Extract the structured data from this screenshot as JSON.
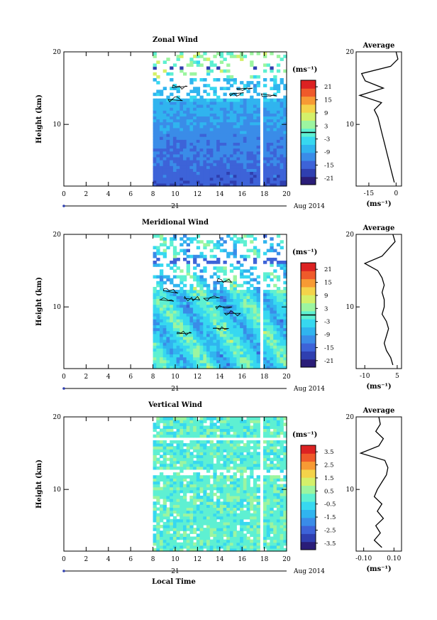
{
  "colors": {
    "colormap": [
      "#2a1d78",
      "#2f3fb0",
      "#3d63d8",
      "#3a8ce8",
      "#30b4ef",
      "#37d8f0",
      "#5ef0d2",
      "#9cf5a0",
      "#d4f06a",
      "#f4d34a",
      "#f79a34",
      "#ef5a2a",
      "#dc2222"
    ],
    "axis": "#000000",
    "contour": "#000000",
    "gap": "#ffffff"
  },
  "figure": {
    "date_label": "Aug 2014",
    "day_label": "21",
    "xlabel": "Local Time",
    "xticks": [
      "0",
      "2",
      "4",
      "6",
      "8",
      "10",
      "12",
      "14",
      "16",
      "18",
      "20"
    ],
    "yticks": [
      "10",
      "20"
    ]
  },
  "chart_data": [
    {
      "type": "heatmap",
      "title": "Zonal Wind",
      "ylabel": "Height (km)",
      "xlim": [
        0,
        20
      ],
      "ylim": [
        1.5,
        20
      ],
      "data_start_hour": 8,
      "gap_hour": 17.7,
      "colorbar": {
        "unit": "(ms⁻¹)",
        "range": [
          -24,
          24
        ],
        "ticks": [
          "21",
          "15",
          "9",
          "3",
          "-3",
          "-9",
          "-15",
          "-21"
        ],
        "zero_line": true
      },
      "profile": {
        "type": "line",
        "title": "Average",
        "xlabel": "(ms⁻¹)",
        "xlim": [
          -22,
          3
        ],
        "xticks": [
          "-15",
          "0"
        ],
        "ylim": [
          1.5,
          20
        ],
        "y": [
          2,
          3,
          4,
          5,
          6,
          7,
          8,
          9,
          10,
          11,
          12,
          13,
          14,
          15,
          16,
          17,
          18,
          19,
          20
        ],
        "x": [
          -1,
          -2,
          -3,
          -4,
          -5,
          -6,
          -7,
          -8,
          -9,
          -10,
          -12,
          -8,
          -20,
          -7,
          -17,
          -19,
          -3,
          1,
          0
        ]
      }
    },
    {
      "type": "heatmap",
      "title": "Meridional Wind",
      "ylabel": "Height (km)",
      "xlim": [
        0,
        20
      ],
      "ylim": [
        1.5,
        20
      ],
      "data_start_hour": 8,
      "gap_hour": 17.7,
      "colorbar": {
        "unit": "(ms⁻¹)",
        "range": [
          -24,
          24
        ],
        "ticks": [
          "21",
          "15",
          "9",
          "3",
          "-3",
          "-9",
          "-15",
          "-21"
        ],
        "zero_line": true
      },
      "profile": {
        "type": "line",
        "title": "Average",
        "xlabel": "(ms⁻¹)",
        "xlim": [
          -14,
          7
        ],
        "xticks": [
          "-10",
          "5"
        ],
        "ylim": [
          1.5,
          20
        ],
        "y": [
          2,
          3,
          4,
          5,
          6,
          7,
          8,
          9,
          10,
          11,
          12,
          13,
          14,
          15,
          16,
          17,
          18,
          19,
          20
        ],
        "x": [
          3,
          2,
          0,
          -1,
          0,
          1,
          0,
          -2,
          -1,
          -1,
          -2,
          -1,
          -2,
          -4,
          -10,
          -2,
          1,
          4,
          3
        ]
      }
    },
    {
      "type": "heatmap",
      "title": "Vertical Wind",
      "ylabel": "Height (km)",
      "xlim": [
        0,
        20
      ],
      "ylim": [
        1.5,
        20
      ],
      "data_start_hour": 8,
      "gap_hour": 17.7,
      "colorbar": {
        "unit": "(ms⁻¹)",
        "range": [
          -4,
          4
        ],
        "ticks": [
          "3.5",
          "2.5",
          "1.5",
          "0.5",
          "-0.5",
          "-1.5",
          "-2.5",
          "-3.5"
        ],
        "zero_line": false
      },
      "profile": {
        "type": "line",
        "title": "Average",
        "xlabel": "(ms⁻¹)",
        "xlim": [
          -0.15,
          0.15
        ],
        "xticks": [
          "-0.10",
          "0.10"
        ],
        "ylim": [
          1.5,
          20
        ],
        "y": [
          2,
          3,
          4,
          5,
          6,
          7,
          8,
          9,
          10,
          11,
          12,
          13,
          14,
          15,
          16,
          17,
          18,
          19,
          20
        ],
        "x": [
          0.02,
          -0.03,
          0.01,
          -0.02,
          0.03,
          -0.01,
          0.02,
          -0.03,
          -0.01,
          0.02,
          0.05,
          0.06,
          0.04,
          -0.12,
          0.0,
          0.03,
          -0.02,
          0.01,
          0.0
        ]
      }
    }
  ]
}
